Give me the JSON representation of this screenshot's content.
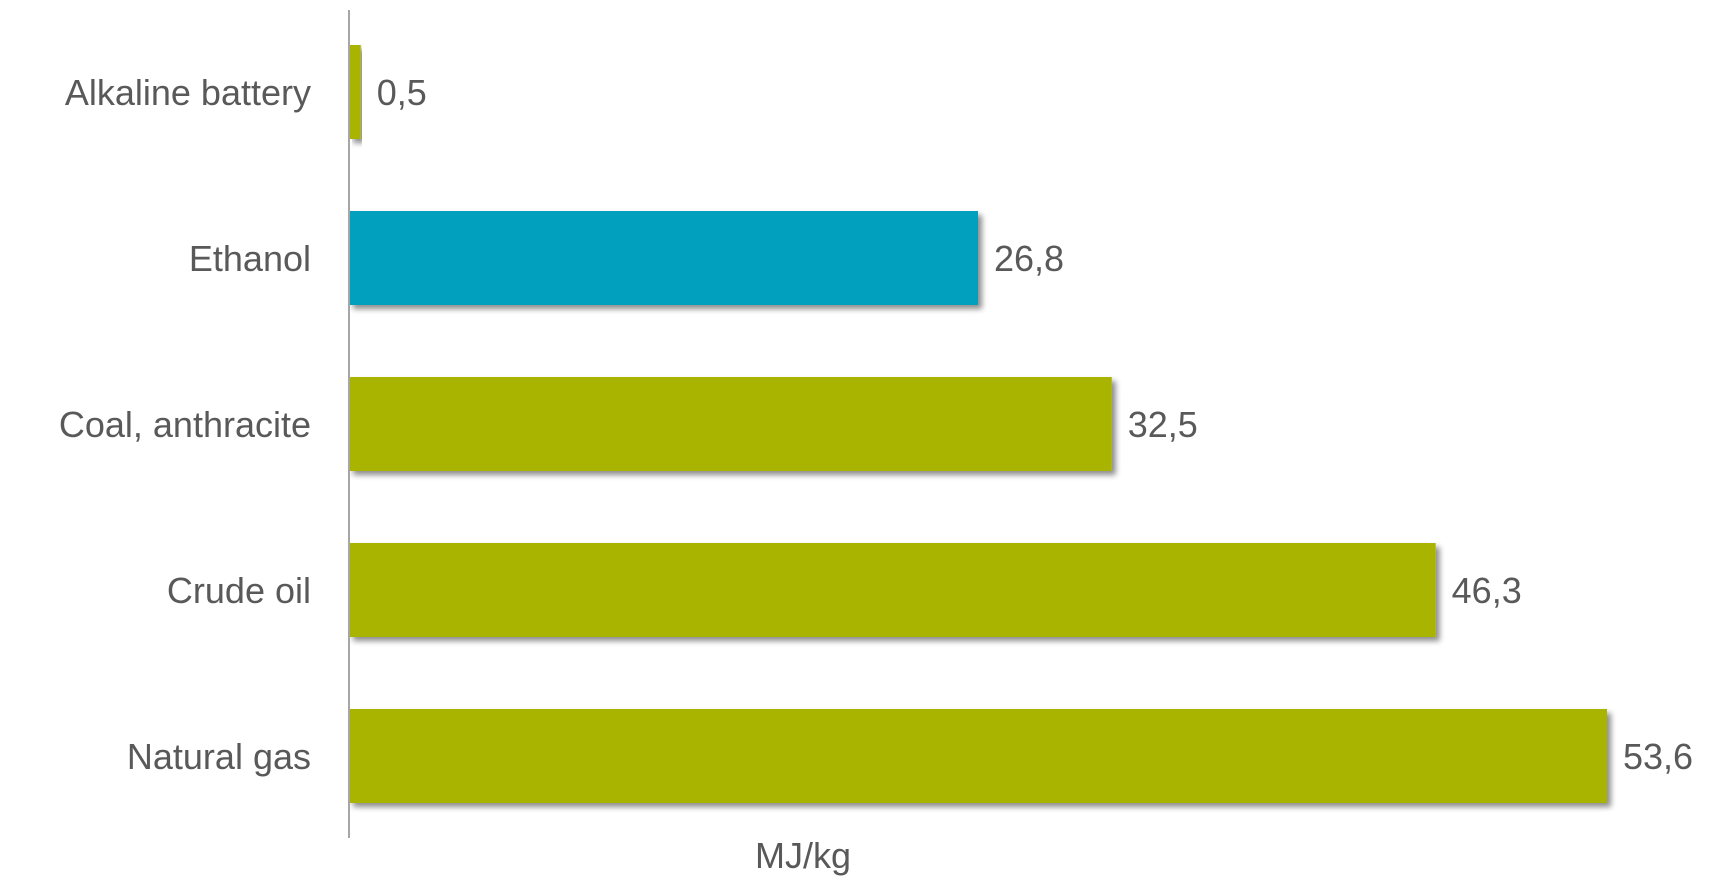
{
  "chart_data": {
    "type": "bar",
    "orientation": "horizontal",
    "categories": [
      "Alkaline battery",
      "Ethanol",
      "Coal, anthracite",
      "Crude oil",
      "Natural gas"
    ],
    "values": [
      0.5,
      26.8,
      32.5,
      46.3,
      53.6
    ],
    "value_labels": [
      "0,5",
      "26,8",
      "32,5",
      "46,3",
      "53,6"
    ],
    "highlight_index": 1,
    "xlabel": "MJ/kg",
    "xlim": [
      0,
      53.6
    ],
    "grid": false,
    "legend": "none",
    "colors": {
      "default_bar": "#a8b400",
      "highlight_bar": "#00a0be",
      "axis_line": "#a6a6a6",
      "text": "#595959"
    }
  }
}
